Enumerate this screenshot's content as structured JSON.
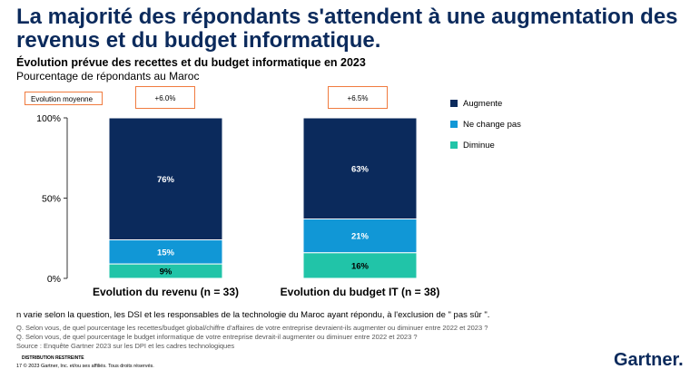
{
  "headline": "La majorité des répondants s'attendent à une augmentation des revenus et du budget informatique.",
  "subtitle": "Évolution prévue des recettes et du budget informatique en 2023",
  "subtitle2": "Pourcentage de répondants au Maroc",
  "evolution_label": "Evolution moyenne",
  "colors": {
    "augmente": "#0b2a5c",
    "ne_change_pas": "#1197d6",
    "diminue": "#21c4a8",
    "accent": "#f07b3f"
  },
  "chart_data": {
    "type": "bar",
    "stacked": true,
    "categories": [
      "Evolution du revenu (n = 33)",
      "Evolution du budget IT (n = 38)"
    ],
    "average_change": [
      "+6.0%",
      "+6.5%"
    ],
    "series": [
      {
        "name": "Diminue",
        "values": [
          9,
          16
        ],
        "labels": [
          "9%",
          "16%"
        ]
      },
      {
        "name": "Ne change pas",
        "values": [
          15,
          21
        ],
        "labels": [
          "15%",
          "21%"
        ]
      },
      {
        "name": "Augmente",
        "values": [
          76,
          63
        ],
        "labels": [
          "76%",
          "63%"
        ]
      }
    ],
    "ylim": [
      0,
      100
    ],
    "yticks": [
      "0%",
      "50%",
      "100%"
    ],
    "legend_order": [
      "Augmente",
      "Ne change pas",
      "Diminue"
    ],
    "legend_position": "right",
    "grid": false
  },
  "footnotes": {
    "note": "n varie selon la question, les DSI et les responsables de la technologie du Maroc ayant répondu, à l'exclusion de \" pas sûr \".",
    "q1": "Q. Selon vous, de quel pourcentage les recettes/budget global/chiffre d'affaires de votre entreprise devraient-ils augmenter ou diminuer entre 2022 et 2023 ?",
    "q2": "Q. Selon vous, de quel pourcentage le budget informatique de votre entreprise devrait-il augmenter ou diminuer entre 2022 et 2023 ?",
    "source": "Source : Enquête Gartner 2023 sur les DPI et les cadres technologiques",
    "restricted": "DISTRIBUTION RESTREINTE",
    "copyright": "17 © 2023 Gartner, Inc. et/ou ses affiliés. Tous droits réservés.",
    "logo": "Gartner."
  }
}
